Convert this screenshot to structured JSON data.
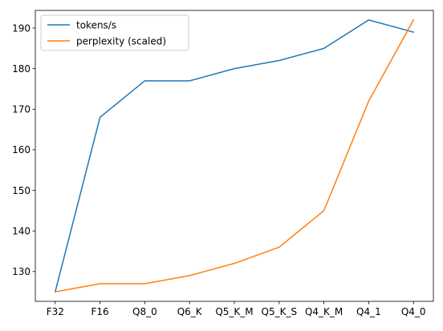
{
  "chart_data": {
    "type": "line",
    "title": "",
    "xlabel": "",
    "ylabel": "",
    "categories": [
      "F32",
      "F16",
      "Q8_0",
      "Q6_K",
      "Q5_K_M",
      "Q5_K_S",
      "Q4_K_M",
      "Q4_1",
      "Q4_0"
    ],
    "ylim": [
      122.65,
      194.35
    ],
    "yticks": [
      130,
      140,
      150,
      160,
      170,
      180,
      190
    ],
    "grid": false,
    "legend_position": "top-left",
    "series": [
      {
        "name": "tokens/s",
        "color": "#1f77b4",
        "values": [
          125,
          168,
          177,
          177,
          180,
          182,
          185,
          192,
          189
        ]
      },
      {
        "name": "perplexity (scaled)",
        "color": "#ff7f0e",
        "values": [
          125,
          127,
          127,
          129,
          132,
          136,
          145,
          172,
          192
        ]
      }
    ]
  }
}
